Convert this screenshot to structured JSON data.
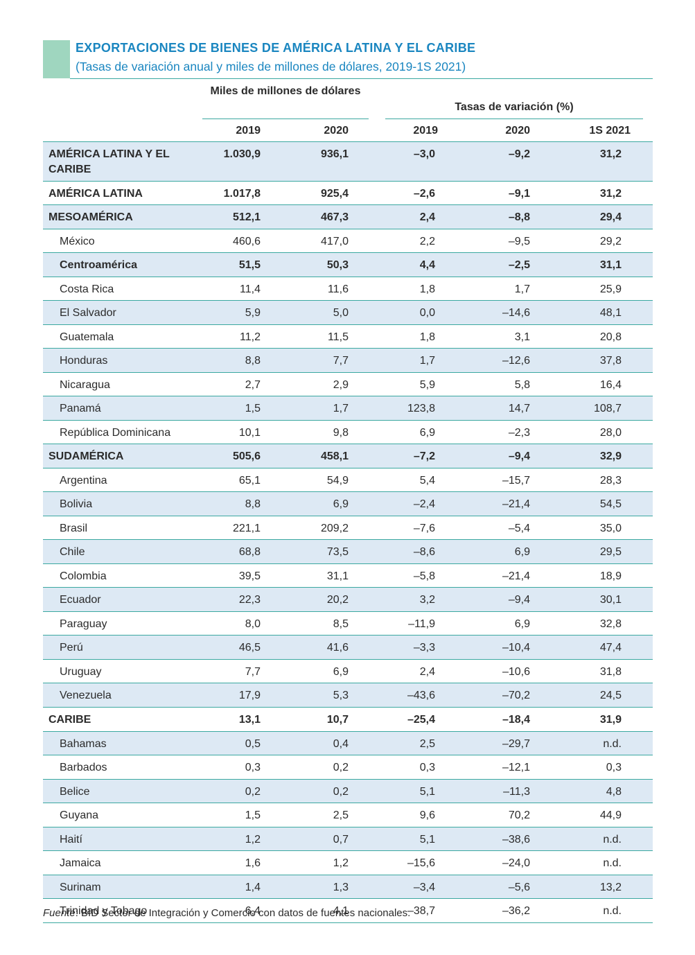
{
  "title": "EXPORTACIONES DE BIENES DE AMÉRICA LATINA Y EL CARIBE",
  "subtitle": "(Tasas de variación anual y miles de millones de dólares, 2019-1S 2021)",
  "header": {
    "group1": "Miles de millones de dólares",
    "group2": "Tasas de variación (%)",
    "cols": [
      "2019",
      "2020",
      "2019",
      "2020",
      "1S 2021"
    ]
  },
  "rows": [
    {
      "name": "AMÉRICA LATINA Y EL CARIBE",
      "v": [
        "1.030,9",
        "936,1",
        "–3,0",
        "–9,2",
        "31,2"
      ]
    },
    {
      "name": "AMÉRICA LATINA",
      "v": [
        "1.017,8",
        "925,4",
        "–2,6",
        "–9,1",
        "31,2"
      ]
    },
    {
      "name": "MESOAMÉRICA",
      "v": [
        "512,1",
        "467,3",
        "2,4",
        "–8,8",
        "29,4"
      ]
    },
    {
      "name": "México",
      "v": [
        "460,6",
        "417,0",
        "2,2",
        "–9,5",
        "29,2"
      ]
    },
    {
      "name": "Centroamérica",
      "v": [
        "51,5",
        "50,3",
        "4,4",
        "–2,5",
        "31,1"
      ]
    },
    {
      "name": "Costa Rica",
      "v": [
        "11,4",
        "11,6",
        "1,8",
        "1,7",
        "25,9"
      ]
    },
    {
      "name": "El Salvador",
      "v": [
        "5,9",
        "5,0",
        "0,0",
        "–14,6",
        "48,1"
      ]
    },
    {
      "name": "Guatemala",
      "v": [
        "11,2",
        "11,5",
        "1,8",
        "3,1",
        "20,8"
      ]
    },
    {
      "name": "Honduras",
      "v": [
        "8,8",
        "7,7",
        "1,7",
        "–12,6",
        "37,8"
      ]
    },
    {
      "name": "Nicaragua",
      "v": [
        "2,7",
        "2,9",
        "5,9",
        "5,8",
        "16,4"
      ]
    },
    {
      "name": "Panamá",
      "v": [
        "1,5",
        "1,7",
        "123,8",
        "14,7",
        "108,7"
      ]
    },
    {
      "name": "República Dominicana",
      "v": [
        "10,1",
        "9,8",
        "6,9",
        "–2,3",
        "28,0"
      ]
    },
    {
      "name": "SUDAMÉRICA",
      "v": [
        "505,6",
        "458,1",
        "–7,2",
        "–9,4",
        "32,9"
      ]
    },
    {
      "name": "Argentina",
      "v": [
        "65,1",
        "54,9",
        "5,4",
        "–15,7",
        "28,3"
      ]
    },
    {
      "name": "Bolivia",
      "v": [
        "8,8",
        "6,9",
        "–2,4",
        "–21,4",
        "54,5"
      ]
    },
    {
      "name": "Brasil",
      "v": [
        "221,1",
        "209,2",
        "–7,6",
        "–5,4",
        "35,0"
      ]
    },
    {
      "name": "Chile",
      "v": [
        "68,8",
        "73,5",
        "–8,6",
        "6,9",
        "29,5"
      ]
    },
    {
      "name": "Colombia",
      "v": [
        "39,5",
        "31,1",
        "–5,8",
        "–21,4",
        "18,9"
      ]
    },
    {
      "name": "Ecuador",
      "v": [
        "22,3",
        "20,2",
        "3,2",
        "–9,4",
        "30,1"
      ]
    },
    {
      "name": "Paraguay",
      "v": [
        "8,0",
        "8,5",
        "–11,9",
        "6,9",
        "32,8"
      ]
    },
    {
      "name": "Perú",
      "v": [
        "46,5",
        "41,6",
        "–3,3",
        "–10,4",
        "47,4"
      ]
    },
    {
      "name": "Uruguay",
      "v": [
        "7,7",
        "6,9",
        "2,4",
        "–10,6",
        "31,8"
      ]
    },
    {
      "name": "Venezuela",
      "v": [
        "17,9",
        "5,3",
        "–43,6",
        "–70,2",
        "24,5"
      ]
    },
    {
      "name": "CARIBE",
      "v": [
        "13,1",
        "10,7",
        "–25,4",
        "–18,4",
        "31,9"
      ]
    },
    {
      "name": "Bahamas",
      "v": [
        "0,5",
        "0,4",
        "2,5",
        "–29,7",
        "n.d."
      ]
    },
    {
      "name": "Barbados",
      "v": [
        "0,3",
        "0,2",
        "0,3",
        "–12,1",
        "0,3"
      ]
    },
    {
      "name": "Belice",
      "v": [
        "0,2",
        "0,2",
        "5,1",
        "–11,3",
        "4,8"
      ]
    },
    {
      "name": "Guyana",
      "v": [
        "1,5",
        "2,5",
        "9,6",
        "70,2",
        "44,9"
      ]
    },
    {
      "name": "Haití",
      "v": [
        "1,2",
        "0,7",
        "5,1",
        "–38,6",
        "n.d."
      ]
    },
    {
      "name": "Jamaica",
      "v": [
        "1,6",
        "1,2",
        "–15,6",
        "–24,0",
        "n.d."
      ]
    },
    {
      "name": "Surinam",
      "v": [
        "1,4",
        "1,3",
        "–3,4",
        "–5,6",
        "13,2"
      ]
    },
    {
      "name": "Trinidad y Tobago",
      "v": [
        "6,4",
        "4,1",
        "–38,7",
        "–36,2",
        "n.d."
      ]
    }
  ],
  "source": {
    "label": "Fuente",
    "text": ": BID Sector de Integración y Comercio con datos de fuentes nacionales."
  }
}
